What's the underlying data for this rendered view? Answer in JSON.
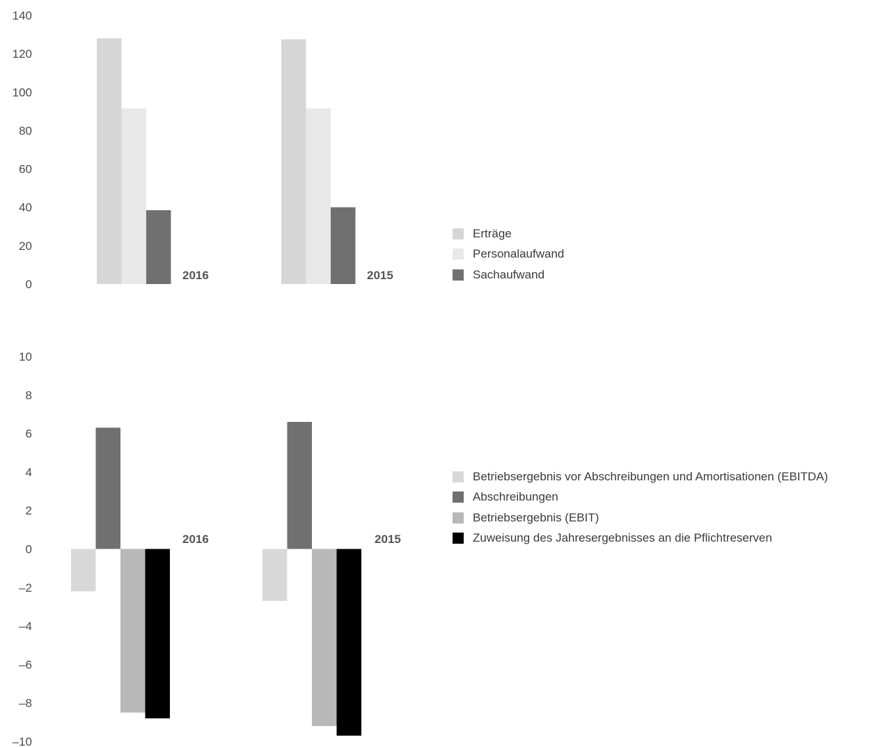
{
  "chart_data": [
    {
      "type": "bar",
      "categories": [
        "2016",
        "2015"
      ],
      "series": [
        {
          "name": "Erträge",
          "values": [
            128,
            127.5
          ],
          "color": "#d6d6d6"
        },
        {
          "name": "Personalaufwand",
          "values": [
            91.5,
            91.5
          ],
          "color": "#e8e8e8"
        },
        {
          "name": "Sachaufwand",
          "values": [
            38.5,
            40
          ],
          "color": "#707070"
        }
      ],
      "yticks": [
        "140",
        "120",
        "100",
        "80",
        "60",
        "40",
        "20",
        "0"
      ],
      "ylim": [
        0,
        140
      ],
      "title": "",
      "xlabel": "",
      "ylabel": "",
      "legend_position": "right"
    },
    {
      "type": "bar",
      "categories": [
        "2016",
        "2015"
      ],
      "series": [
        {
          "name": "Betriebsergebnis vor Abschreibungen und Amortisationen (EBITDA)",
          "values": [
            -2.2,
            -2.7
          ],
          "color": "#d8d8d8"
        },
        {
          "name": "Abschreibungen",
          "values": [
            6.3,
            6.6
          ],
          "color": "#707070"
        },
        {
          "name": "Betriebsergebnis (EBIT)",
          "values": [
            -8.5,
            -9.2
          ],
          "color": "#b8b8b8"
        },
        {
          "name": "Zuweisung des Jahresergebnisses an die Pflichtreserven",
          "values": [
            -8.8,
            -9.7
          ],
          "color": "#000000"
        }
      ],
      "yticks": [
        "10",
        "8",
        "6",
        "4",
        "2",
        "0",
        "–2",
        "–4",
        "–6",
        "–8",
        "–10"
      ],
      "ylim": [
        -10,
        10
      ],
      "title": "",
      "xlabel": "",
      "ylabel": "",
      "legend_position": "right"
    }
  ]
}
